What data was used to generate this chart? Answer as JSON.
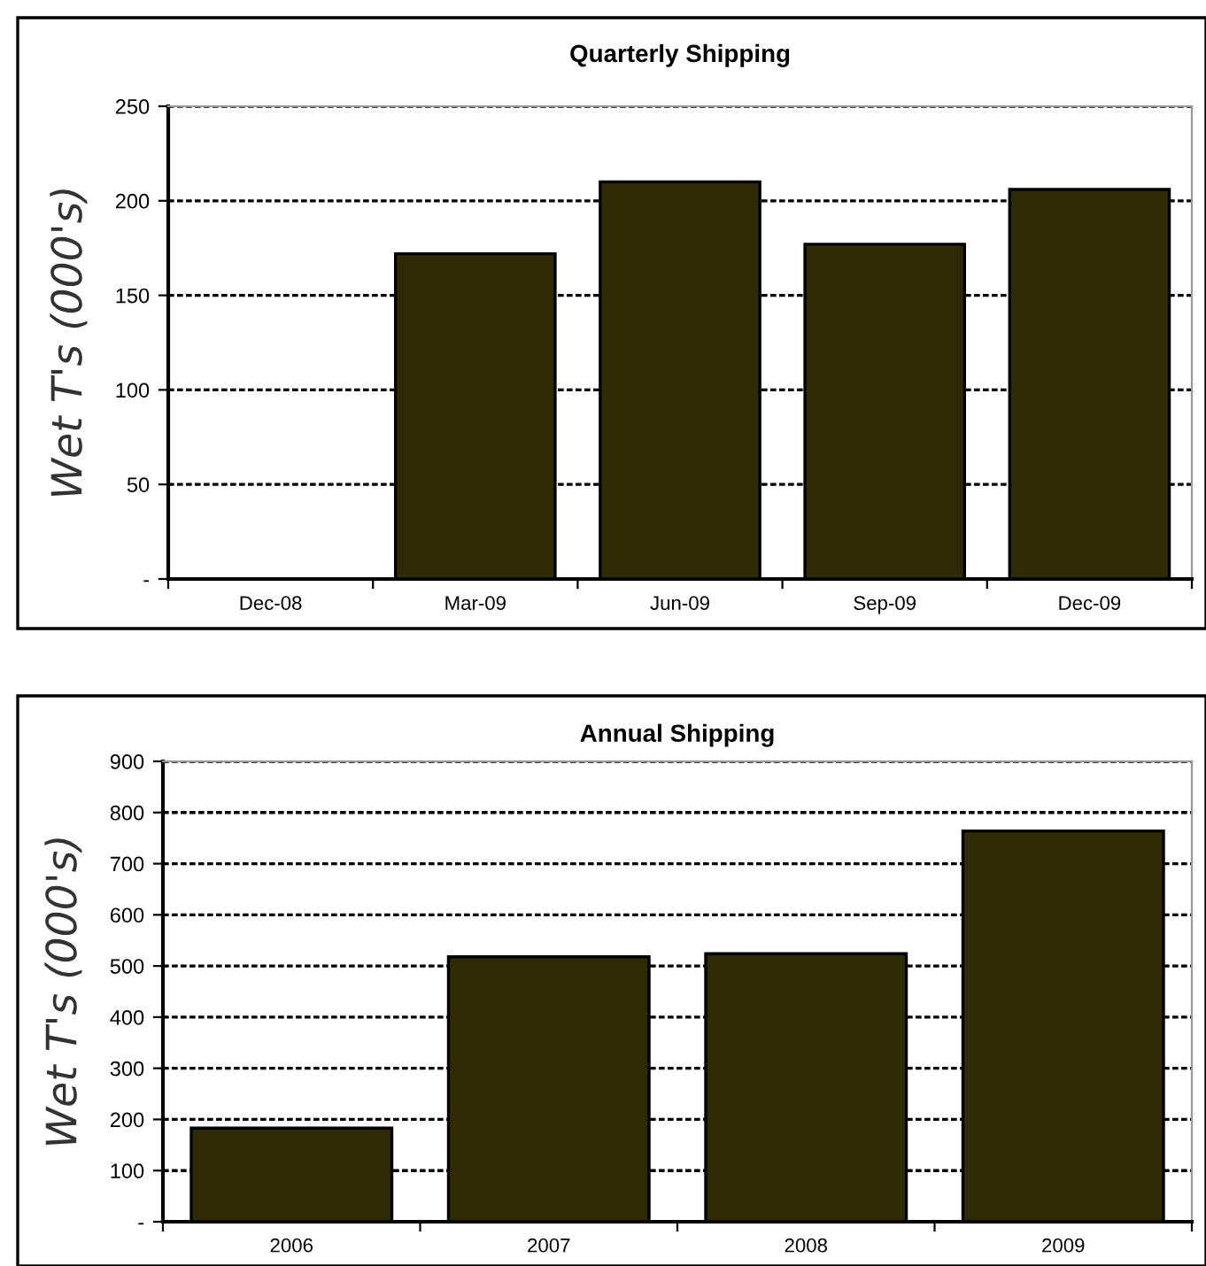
{
  "chart_data": [
    {
      "type": "bar",
      "title": "Quarterly Shipping",
      "ylabel": "Wet T's (000's)",
      "categories": [
        "Dec-08",
        "Mar-09",
        "Jun-09",
        "Sep-09",
        "Dec-09"
      ],
      "values": [
        null,
        172,
        210,
        177,
        206
      ],
      "color": "#2e2a06",
      "ylim": [
        0,
        250
      ],
      "yticks": [
        {
          "value": 0,
          "label": "-"
        },
        50,
        100,
        150,
        200,
        250
      ],
      "grid": "y"
    },
    {
      "type": "bar",
      "title": "Annual Shipping",
      "ylabel": "Wet T's (000's)",
      "categories": [
        "2006",
        "2007",
        "2008",
        "2009"
      ],
      "values": [
        183,
        518,
        524,
        764
      ],
      "color": "#2e2a06",
      "ylim": [
        0,
        900
      ],
      "yticks": [
        {
          "value": 0,
          "label": "-"
        },
        100,
        200,
        300,
        400,
        500,
        600,
        700,
        800,
        900
      ],
      "grid": "y"
    }
  ]
}
